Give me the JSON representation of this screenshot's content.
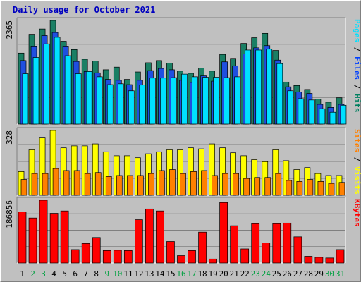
{
  "title": "Daily usage for October 2021",
  "chart_data": [
    {
      "type": "bar",
      "panel": "top",
      "ymax_label": "2365",
      "ylim": [
        0,
        2365
      ],
      "right_label": [
        {
          "text": "Pages",
          "color": "#00e0ff"
        },
        {
          "text": " / ",
          "color": "#000000"
        },
        {
          "text": "Files",
          "color": "#0040ff"
        },
        {
          "text": " / ",
          "color": "#000000"
        },
        {
          "text": "Hits",
          "color": "#008060"
        }
      ],
      "categories": [
        "1",
        "2",
        "3",
        "4",
        "5",
        "6",
        "7",
        "8",
        "9",
        "10",
        "11",
        "12",
        "13",
        "14",
        "15",
        "16",
        "17",
        "18",
        "19",
        "20",
        "21",
        "22",
        "23",
        "24",
        "25",
        "26",
        "27",
        "28",
        "29",
        "30",
        "31"
      ],
      "series": [
        {
          "name": "Hits",
          "color": "#1a7f64",
          "values": [
            1620,
            2050,
            2170,
            2365,
            1890,
            1700,
            1480,
            1440,
            1240,
            1300,
            1020,
            1190,
            1400,
            1450,
            1390,
            1210,
            1160,
            1280,
            1210,
            1590,
            1500,
            1840,
            1970,
            2070,
            1680,
            960,
            880,
            790,
            570,
            500,
            600
          ]
        },
        {
          "name": "Files",
          "color": "#1f4fe0",
          "values": [
            1450,
            1780,
            2020,
            2090,
            1780,
            1430,
            1200,
            1170,
            1020,
            1000,
            900,
            1000,
            1220,
            1270,
            1240,
            1000,
            950,
            1100,
            980,
            1420,
            1330,
            1600,
            1740,
            1790,
            1460,
            850,
            730,
            700,
            450,
            380,
            450
          ]
        },
        {
          "name": "Pages",
          "color": "#00e0ff",
          "values": [
            1150,
            1520,
            1830,
            1980,
            1560,
            1150,
            1200,
            1080,
            900,
            920,
            760,
            890,
            1050,
            1050,
            1060,
            1140,
            1080,
            1070,
            1070,
            1060,
            1080,
            1690,
            1690,
            1710,
            1380,
            760,
            580,
            550,
            350,
            270,
            430
          ]
        }
      ]
    },
    {
      "type": "bar",
      "panel": "middle",
      "ymax_label": "328",
      "ylim": [
        0,
        328
      ],
      "right_label": [
        {
          "text": "Sites",
          "color": "#ff8000"
        },
        {
          "text": " / ",
          "color": "#000000"
        },
        {
          "text": "Visits",
          "color": "#ffff00"
        }
      ],
      "categories": [
        "1",
        "2",
        "3",
        "4",
        "5",
        "6",
        "7",
        "8",
        "9",
        "10",
        "11",
        "12",
        "13",
        "14",
        "15",
        "16",
        "17",
        "18",
        "19",
        "20",
        "21",
        "22",
        "23",
        "24",
        "25",
        "26",
        "27",
        "28",
        "29",
        "30",
        "31"
      ],
      "series": [
        {
          "name": "Visits",
          "color": "#ffff00",
          "values": [
            120,
            230,
            290,
            328,
            240,
            250,
            250,
            260,
            220,
            200,
            200,
            190,
            210,
            220,
            230,
            230,
            240,
            235,
            260,
            240,
            215,
            200,
            180,
            170,
            230,
            175,
            130,
            140,
            110,
            100,
            100
          ]
        },
        {
          "name": "Sites",
          "color": "#ff8000",
          "values": [
            80,
            110,
            110,
            135,
            125,
            125,
            110,
            115,
            95,
            100,
            100,
            100,
            110,
            125,
            130,
            110,
            120,
            125,
            100,
            110,
            110,
            85,
            90,
            90,
            110,
            75,
            70,
            80,
            70,
            60,
            65
          ]
        }
      ]
    },
    {
      "type": "bar",
      "panel": "bottom",
      "ymax_label": "186856",
      "ylim": [
        0,
        186856
      ],
      "right_label": [
        {
          "text": "KBytes",
          "color": "#ff0000"
        }
      ],
      "categories": [
        "1",
        "2",
        "3",
        "4",
        "5",
        "6",
        "7",
        "8",
        "9",
        "10",
        "11",
        "12",
        "13",
        "14",
        "15",
        "16",
        "17",
        "18",
        "19",
        "20",
        "21",
        "22",
        "23",
        "24",
        "25",
        "26",
        "27",
        "28",
        "29",
        "30",
        "31"
      ],
      "series": [
        {
          "name": "KBytes",
          "color": "#ff0000",
          "values": [
            152000,
            134000,
            186856,
            148000,
            155000,
            40000,
            58000,
            76000,
            37000,
            38000,
            37000,
            129000,
            161000,
            155000,
            64000,
            22000,
            37000,
            92000,
            12000,
            180000,
            111000,
            42000,
            117000,
            60000,
            117000,
            119000,
            78000,
            20000,
            17000,
            15000,
            40000
          ]
        }
      ]
    }
  ]
}
